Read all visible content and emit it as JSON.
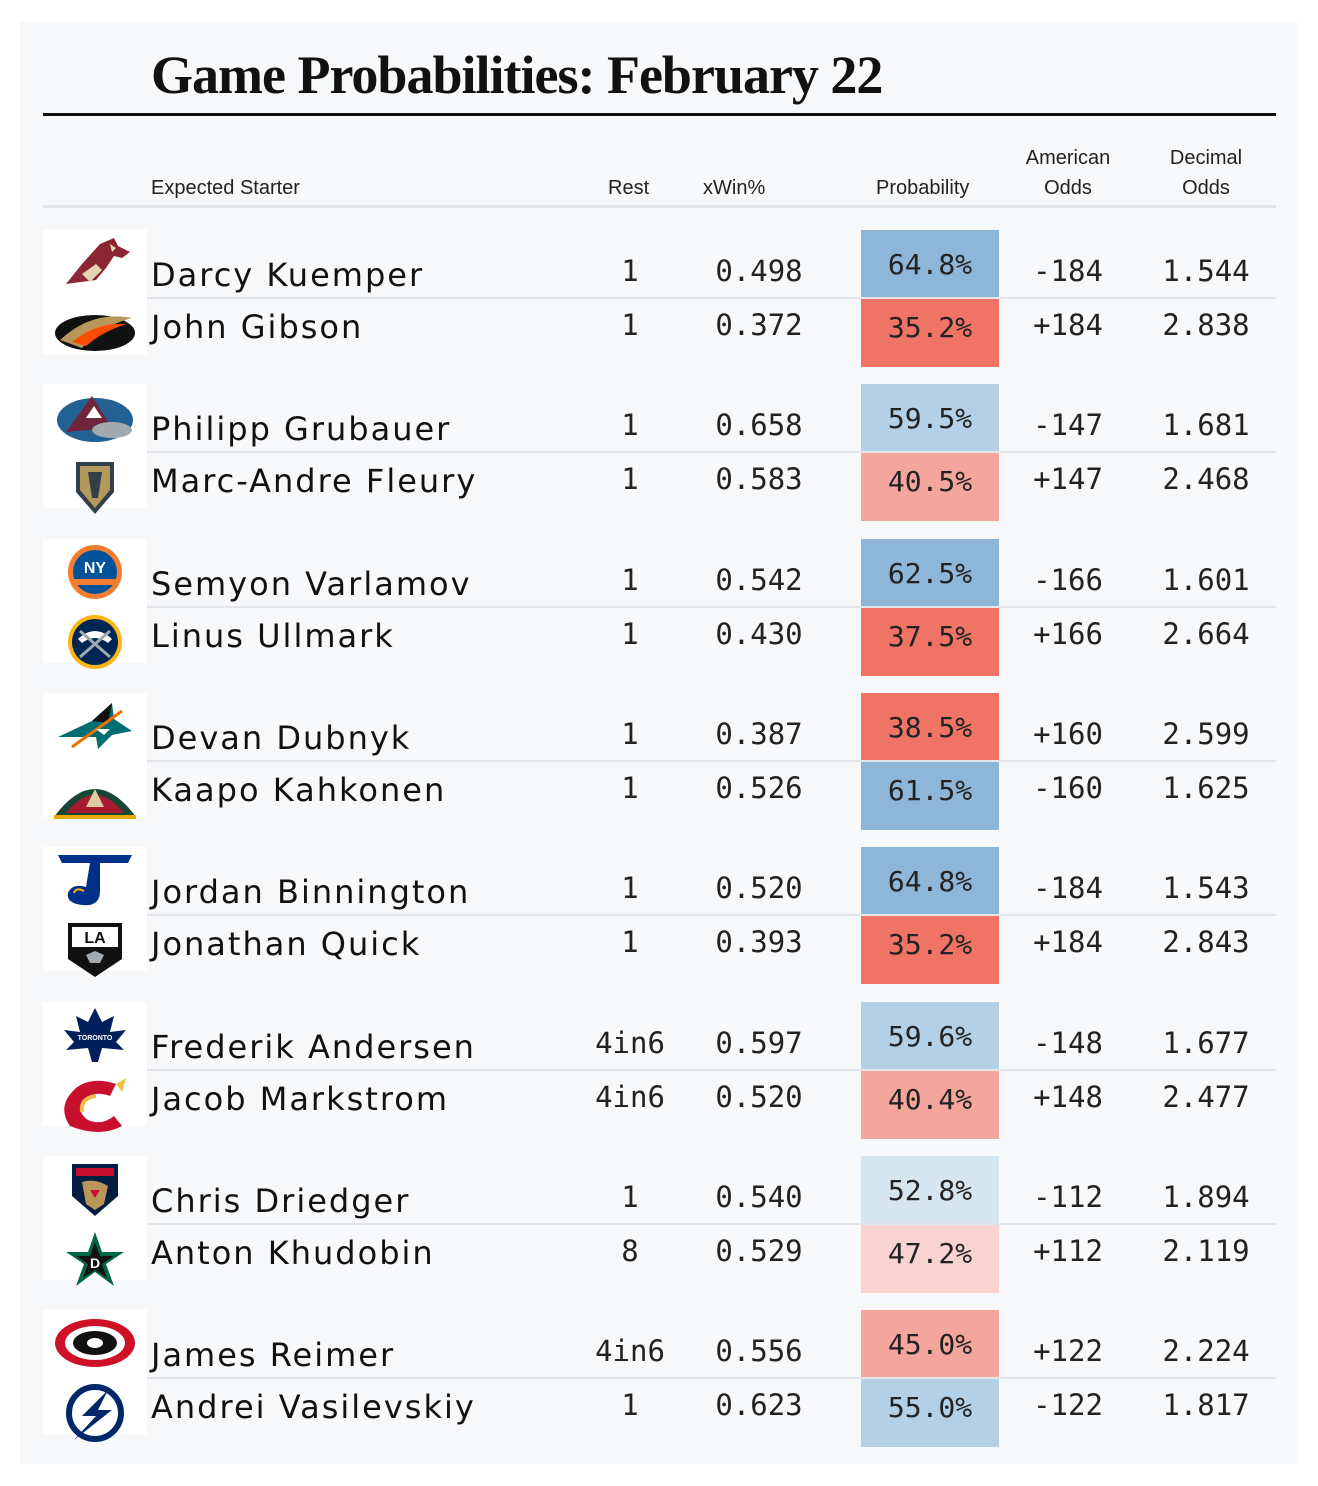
{
  "title": "Game Probabilities: February 22",
  "headers": {
    "starter": "Expected Starter",
    "rest": "Rest",
    "xwin": "xWin%",
    "probability": "Probability",
    "american_1": "American",
    "american_2": "Odds",
    "decimal_1": "Decimal",
    "decimal_2": "Odds"
  },
  "colors": {
    "fav_strong": "#8db6d9",
    "fav_mid": "#b3d0e6",
    "fav_light": "#d6e6f1",
    "dog_strong": "#ef7466",
    "dog_mid": "#f4a69d",
    "dog_light": "#f8d3cf"
  },
  "chart_data": {
    "type": "table",
    "title": "Game Probabilities: February 22",
    "columns": [
      "Expected Starter",
      "Rest",
      "xWin%",
      "Probability",
      "American Odds",
      "Decimal Odds"
    ],
    "games": [
      [
        {
          "team_icon": "coyotes-logo-icon",
          "starter": "Darcy Kuemper",
          "rest": "1",
          "xwin": "0.498",
          "prob": "64.8%",
          "prob_value": 64.8,
          "american": "-184",
          "decimal": "1.544",
          "shade": "fav_strong"
        },
        {
          "team_icon": "ducks-logo-icon",
          "starter": "John Gibson",
          "rest": "1",
          "xwin": "0.372",
          "prob": "35.2%",
          "prob_value": 35.2,
          "american": "+184",
          "decimal": "2.838",
          "shade": "dog_strong"
        }
      ],
      [
        {
          "team_icon": "avalanche-logo-icon",
          "starter": "Philipp Grubauer",
          "rest": "1",
          "xwin": "0.658",
          "prob": "59.5%",
          "prob_value": 59.5,
          "american": "-147",
          "decimal": "1.681",
          "shade": "fav_mid"
        },
        {
          "team_icon": "golden-knights-logo-icon",
          "starter": "Marc-Andre Fleury",
          "rest": "1",
          "xwin": "0.583",
          "prob": "40.5%",
          "prob_value": 40.5,
          "american": "+147",
          "decimal": "2.468",
          "shade": "dog_mid"
        }
      ],
      [
        {
          "team_icon": "islanders-logo-icon",
          "starter": "Semyon Varlamov",
          "rest": "1",
          "xwin": "0.542",
          "prob": "62.5%",
          "prob_value": 62.5,
          "american": "-166",
          "decimal": "1.601",
          "shade": "fav_strong"
        },
        {
          "team_icon": "sabres-logo-icon",
          "starter": "Linus Ullmark",
          "rest": "1",
          "xwin": "0.430",
          "prob": "37.5%",
          "prob_value": 37.5,
          "american": "+166",
          "decimal": "2.664",
          "shade": "dog_strong"
        }
      ],
      [
        {
          "team_icon": "sharks-logo-icon",
          "starter": "Devan Dubnyk",
          "rest": "1",
          "xwin": "0.387",
          "prob": "38.5%",
          "prob_value": 38.5,
          "american": "+160",
          "decimal": "2.599",
          "shade": "dog_strong"
        },
        {
          "team_icon": "wild-logo-icon",
          "starter": "Kaapo Kahkonen",
          "rest": "1",
          "xwin": "0.526",
          "prob": "61.5%",
          "prob_value": 61.5,
          "american": "-160",
          "decimal": "1.625",
          "shade": "fav_strong"
        }
      ],
      [
        {
          "team_icon": "blues-logo-icon",
          "starter": "Jordan Binnington",
          "rest": "1",
          "xwin": "0.520",
          "prob": "64.8%",
          "prob_value": 64.8,
          "american": "-184",
          "decimal": "1.543",
          "shade": "fav_strong"
        },
        {
          "team_icon": "kings-logo-icon",
          "starter": "Jonathan Quick",
          "rest": "1",
          "xwin": "0.393",
          "prob": "35.2%",
          "prob_value": 35.2,
          "american": "+184",
          "decimal": "2.843",
          "shade": "dog_strong"
        }
      ],
      [
        {
          "team_icon": "maple-leafs-logo-icon",
          "starter": "Frederik Andersen",
          "rest": "4in6",
          "xwin": "0.597",
          "prob": "59.6%",
          "prob_value": 59.6,
          "american": "-148",
          "decimal": "1.677",
          "shade": "fav_mid"
        },
        {
          "team_icon": "flames-logo-icon",
          "starter": "Jacob Markstrom",
          "rest": "4in6",
          "xwin": "0.520",
          "prob": "40.4%",
          "prob_value": 40.4,
          "american": "+148",
          "decimal": "2.477",
          "shade": "dog_mid"
        }
      ],
      [
        {
          "team_icon": "panthers-logo-icon",
          "starter": "Chris Driedger",
          "rest": "1",
          "xwin": "0.540",
          "prob": "52.8%",
          "prob_value": 52.8,
          "american": "-112",
          "decimal": "1.894",
          "shade": "fav_light"
        },
        {
          "team_icon": "stars-logo-icon",
          "starter": "Anton Khudobin",
          "rest": "8",
          "xwin": "0.529",
          "prob": "47.2%",
          "prob_value": 47.2,
          "american": "+112",
          "decimal": "2.119",
          "shade": "dog_light"
        }
      ],
      [
        {
          "team_icon": "hurricanes-logo-icon",
          "starter": "James Reimer",
          "rest": "4in6",
          "xwin": "0.556",
          "prob": "45.0%",
          "prob_value": 45.0,
          "american": "+122",
          "decimal": "2.224",
          "shade": "dog_mid"
        },
        {
          "team_icon": "lightning-logo-icon",
          "starter": "Andrei Vasilevskiy",
          "rest": "1",
          "xwin": "0.623",
          "prob": "55.0%",
          "prob_value": 55.0,
          "american": "-122",
          "decimal": "1.817",
          "shade": "fav_mid"
        }
      ]
    ]
  }
}
